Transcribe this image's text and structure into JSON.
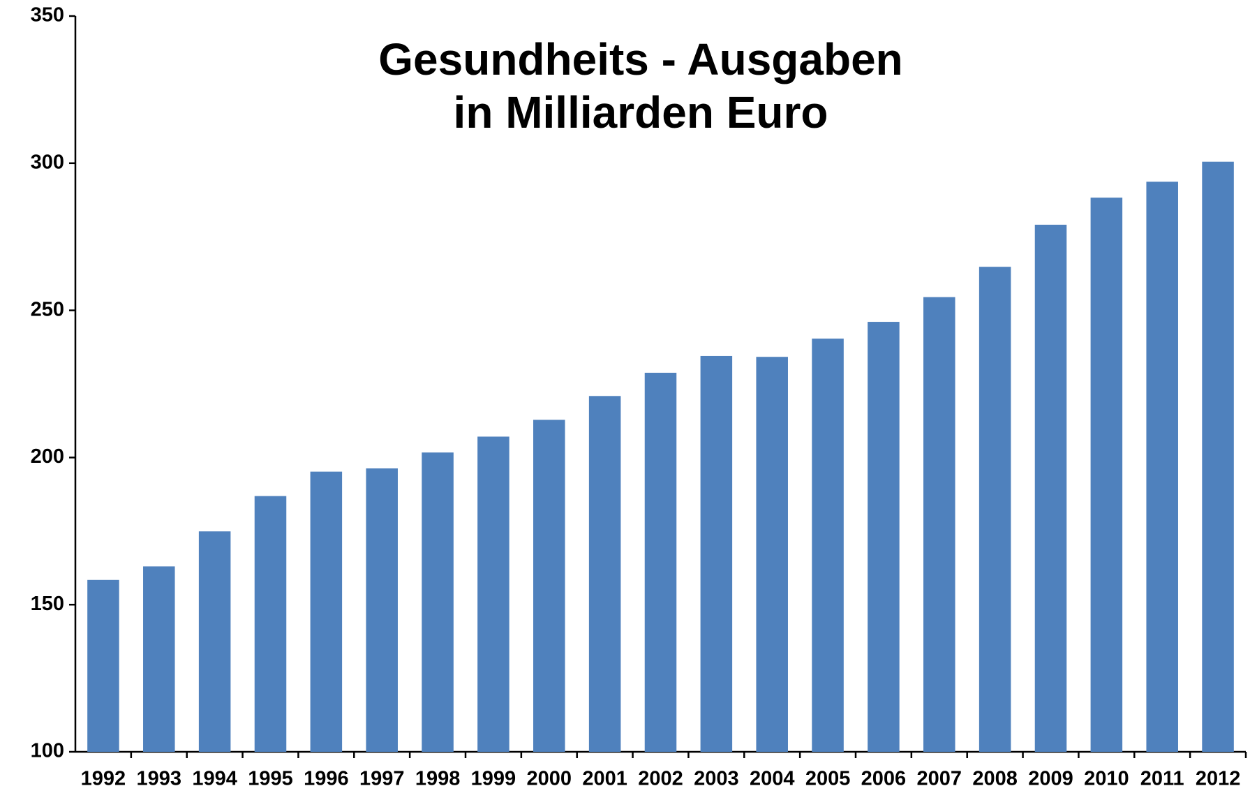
{
  "chart_data": {
    "type": "bar",
    "title": [
      "Gesundheits - Ausgaben",
      "in Milliarden Euro"
    ],
    "categories": [
      "1992",
      "1993",
      "1994",
      "1995",
      "1996",
      "1997",
      "1998",
      "1999",
      "2000",
      "2001",
      "2002",
      "2003",
      "2004",
      "2005",
      "2006",
      "2007",
      "2008",
      "2009",
      "2010",
      "2011",
      "2012"
    ],
    "values": [
      158.4,
      163.0,
      174.9,
      186.9,
      195.2,
      196.3,
      201.7,
      207.1,
      212.8,
      220.9,
      228.8,
      234.5,
      234.2,
      240.4,
      246.1,
      254.5,
      264.8,
      279.1,
      288.3,
      293.7,
      300.5
    ],
    "color": "#4f81bd",
    "ylim": [
      100,
      350
    ],
    "yticks": [
      100,
      150,
      200,
      250,
      300,
      350
    ],
    "grid": false
  }
}
